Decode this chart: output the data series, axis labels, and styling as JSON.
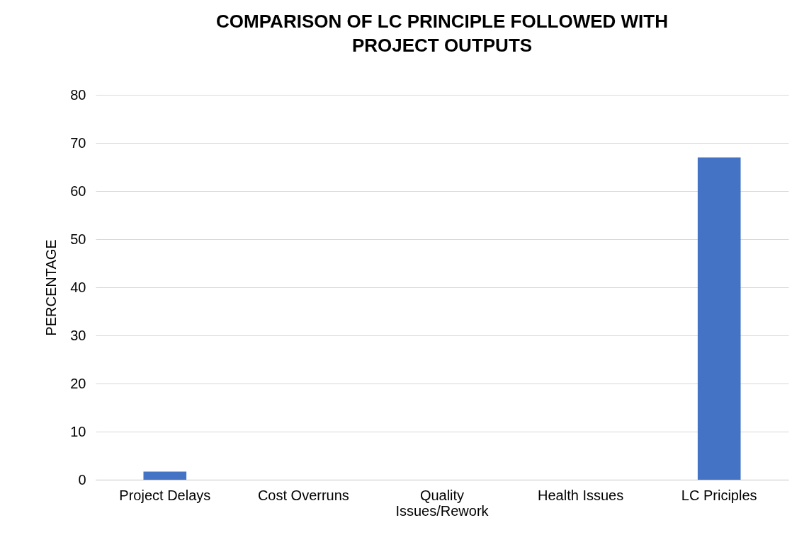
{
  "chart_data": {
    "type": "bar",
    "title": "COMPARISON OF LC PRINCIPLE FOLLOWED WITH PROJECT OUTPUTS",
    "ylabel": "PERCENTAGE",
    "categories": [
      "Project Delays",
      "Cost Overruns",
      "Quality Issues/Rework",
      "Health Issues",
      "LC Priciples"
    ],
    "values": [
      1.7,
      0,
      0,
      0,
      67
    ],
    "color": "#4472c4",
    "ylim": [
      0,
      80
    ],
    "yticks": [
      0,
      10,
      20,
      30,
      40,
      50,
      60,
      70,
      80
    ],
    "grid": "y"
  }
}
